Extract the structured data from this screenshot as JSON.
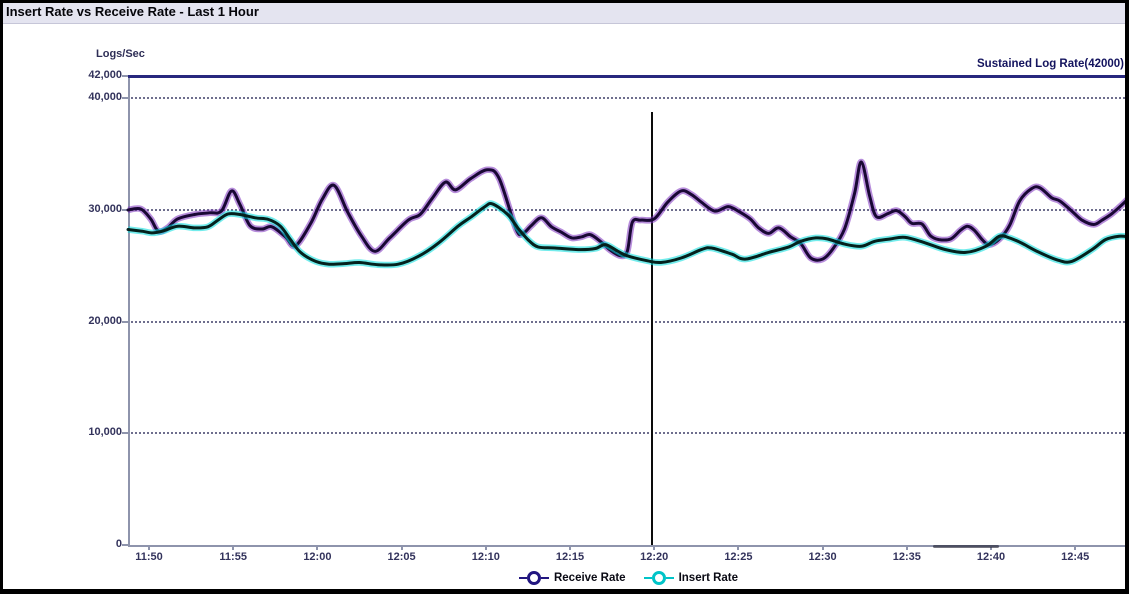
{
  "title": "Insert Rate vs Receive Rate - Last 1 Hour",
  "colors": {
    "titlebar_bg": "#e4e4f0",
    "threshold_line": "#28287e",
    "grid_dots": "#55557a",
    "axis": "#8e94ac",
    "tick_text": "#33335c",
    "cursor_line": "#0c0c0c",
    "receive_core": "#190834",
    "receive_glow": "#7b2fbe",
    "insert_core": "#04211d",
    "insert_glow": "#00dcdc"
  },
  "chart_data": {
    "type": "line",
    "title": "Insert Rate vs Receive Rate - Last 1 Hour",
    "xlabel": "",
    "ylabel": "Logs/Sec",
    "ylim": [
      0,
      42000
    ],
    "grid": "horizontal-dotted",
    "legend_position": "bottom-center",
    "y_ticks": [
      {
        "label": "42,000",
        "value": 42000,
        "grid": false
      },
      {
        "label": "40,000",
        "value": 40000,
        "grid": true
      },
      {
        "label": "30,000",
        "value": 30000,
        "grid": true
      },
      {
        "label": "20,000",
        "value": 20000,
        "grid": true
      },
      {
        "label": "10,000",
        "value": 10000,
        "grid": true
      },
      {
        "label": "0",
        "value": 0,
        "grid": false
      }
    ],
    "x_ticks": [
      {
        "label": "11:50",
        "t": 0
      },
      {
        "label": "11:55",
        "t": 5
      },
      {
        "label": "12:00",
        "t": 10
      },
      {
        "label": "12:05",
        "t": 15
      },
      {
        "label": "12:10",
        "t": 20
      },
      {
        "label": "12:15",
        "t": 25
      },
      {
        "label": "12:20",
        "t": 30
      },
      {
        "label": "12:25",
        "t": 35
      },
      {
        "label": "12:30",
        "t": 40
      },
      {
        "label": "12:35",
        "t": 45
      },
      {
        "label": "12:40",
        "t": 50
      },
      {
        "label": "12:45",
        "t": 55
      }
    ],
    "threshold": {
      "label": "Sustained Log Rate(42000)",
      "value": 42000
    },
    "vertical_cursor": {
      "time": "12:20",
      "t": 29.8,
      "top_value": 38800
    },
    "series": [
      {
        "name": "Receive Rate",
        "legend_color": "#221680",
        "core_color": "#190834",
        "glow_color": "#7b2fbe",
        "points": [
          [
            -1.25,
            30000
          ],
          [
            -0.5,
            30100
          ],
          [
            0.1,
            29200
          ],
          [
            0.55,
            28100
          ],
          [
            1.1,
            28400
          ],
          [
            1.7,
            29200
          ],
          [
            2.7,
            29600
          ],
          [
            3.6,
            29750
          ],
          [
            4.3,
            29900
          ],
          [
            4.9,
            31700
          ],
          [
            5.4,
            30500
          ],
          [
            6.0,
            28600
          ],
          [
            6.7,
            28300
          ],
          [
            7.3,
            28500
          ],
          [
            8.1,
            27600
          ],
          [
            8.7,
            26800
          ],
          [
            9.6,
            28800
          ],
          [
            10.3,
            31000
          ],
          [
            11.0,
            32200
          ],
          [
            11.8,
            29800
          ],
          [
            12.6,
            27700
          ],
          [
            13.4,
            26300
          ],
          [
            14.3,
            27500
          ],
          [
            15.4,
            29100
          ],
          [
            16.1,
            29600
          ],
          [
            16.8,
            31000
          ],
          [
            17.6,
            32500
          ],
          [
            18.2,
            31800
          ],
          [
            19.1,
            32800
          ],
          [
            20.1,
            33600
          ],
          [
            20.8,
            32800
          ],
          [
            21.8,
            28300
          ],
          [
            22.2,
            27900
          ],
          [
            22.7,
            28600
          ],
          [
            23.3,
            29300
          ],
          [
            23.9,
            28500
          ],
          [
            24.5,
            28000
          ],
          [
            25.1,
            27500
          ],
          [
            25.7,
            27600
          ],
          [
            26.2,
            27800
          ],
          [
            26.8,
            27200
          ],
          [
            27.4,
            26400
          ],
          [
            28.0,
            25900
          ],
          [
            28.4,
            26300
          ],
          [
            28.7,
            28900
          ],
          [
            29.2,
            29100
          ],
          [
            30.0,
            29200
          ],
          [
            30.8,
            30700
          ],
          [
            31.6,
            31700
          ],
          [
            32.2,
            31400
          ],
          [
            32.8,
            30700
          ],
          [
            33.6,
            29900
          ],
          [
            34.4,
            30300
          ],
          [
            35.1,
            29800
          ],
          [
            35.7,
            29200
          ],
          [
            36.2,
            28400
          ],
          [
            36.8,
            27900
          ],
          [
            37.4,
            28400
          ],
          [
            38.1,
            27600
          ],
          [
            38.7,
            27000
          ],
          [
            39.3,
            25700
          ],
          [
            40.0,
            25600
          ],
          [
            40.6,
            26500
          ],
          [
            41.3,
            28300
          ],
          [
            41.9,
            31500
          ],
          [
            42.3,
            34300
          ],
          [
            42.8,
            31200
          ],
          [
            43.2,
            29400
          ],
          [
            43.9,
            29700
          ],
          [
            44.4,
            29950
          ],
          [
            44.9,
            29400
          ],
          [
            45.3,
            28800
          ],
          [
            45.9,
            28750
          ],
          [
            46.4,
            27700
          ],
          [
            46.9,
            27350
          ],
          [
            47.6,
            27400
          ],
          [
            48.2,
            28200
          ],
          [
            48.6,
            28550
          ],
          [
            49.0,
            28200
          ],
          [
            49.5,
            27300
          ],
          [
            49.9,
            26900
          ],
          [
            50.5,
            27400
          ],
          [
            51.1,
            28600
          ],
          [
            51.7,
            30800
          ],
          [
            52.4,
            31900
          ],
          [
            52.9,
            32000
          ],
          [
            53.6,
            31100
          ],
          [
            54.1,
            30800
          ],
          [
            54.8,
            29900
          ],
          [
            55.4,
            29100
          ],
          [
            56.1,
            28700
          ],
          [
            56.6,
            29100
          ],
          [
            57.2,
            29700
          ],
          [
            57.8,
            30500
          ],
          [
            58.2,
            31100
          ]
        ]
      },
      {
        "name": "Insert Rate",
        "legend_color": "#00c4c8",
        "core_color": "#04211d",
        "glow_color": "#00dcdc",
        "points": [
          [
            -1.25,
            28250
          ],
          [
            -0.4,
            28100
          ],
          [
            0.2,
            27950
          ],
          [
            0.8,
            28100
          ],
          [
            1.7,
            28550
          ],
          [
            2.7,
            28400
          ],
          [
            3.5,
            28500
          ],
          [
            4.1,
            29100
          ],
          [
            4.7,
            29650
          ],
          [
            5.4,
            29600
          ],
          [
            6.3,
            29300
          ],
          [
            7.1,
            29150
          ],
          [
            7.8,
            28550
          ],
          [
            8.4,
            27350
          ],
          [
            9.0,
            26200
          ],
          [
            9.9,
            25400
          ],
          [
            10.7,
            25150
          ],
          [
            11.6,
            25200
          ],
          [
            12.5,
            25300
          ],
          [
            13.6,
            25100
          ],
          [
            14.8,
            25150
          ],
          [
            16.0,
            25850
          ],
          [
            17.2,
            27050
          ],
          [
            18.35,
            28550
          ],
          [
            19.1,
            29350
          ],
          [
            19.95,
            30300
          ],
          [
            20.4,
            30550
          ],
          [
            21.3,
            29600
          ],
          [
            21.9,
            28400
          ],
          [
            22.5,
            27350
          ],
          [
            23.1,
            26700
          ],
          [
            24.1,
            26600
          ],
          [
            25.5,
            26450
          ],
          [
            26.5,
            26550
          ],
          [
            27.1,
            26900
          ],
          [
            27.85,
            26300
          ],
          [
            28.4,
            25900
          ],
          [
            29.6,
            25450
          ],
          [
            30.4,
            25300
          ],
          [
            31.6,
            25700
          ],
          [
            32.8,
            26450
          ],
          [
            33.4,
            26600
          ],
          [
            34.6,
            26050
          ],
          [
            35.4,
            25600
          ],
          [
            36.8,
            26200
          ],
          [
            38.0,
            26700
          ],
          [
            38.7,
            27200
          ],
          [
            39.6,
            27500
          ],
          [
            40.3,
            27400
          ],
          [
            41.3,
            26950
          ],
          [
            42.3,
            26750
          ],
          [
            43.1,
            27200
          ],
          [
            44.0,
            27400
          ],
          [
            44.9,
            27550
          ],
          [
            46.1,
            27050
          ],
          [
            47.3,
            26450
          ],
          [
            48.5,
            26200
          ],
          [
            49.7,
            26750
          ],
          [
            50.5,
            27650
          ],
          [
            51.1,
            27500
          ],
          [
            51.8,
            27050
          ],
          [
            52.8,
            26250
          ],
          [
            54.0,
            25500
          ],
          [
            54.8,
            25400
          ],
          [
            56.0,
            26450
          ],
          [
            56.8,
            27350
          ],
          [
            57.6,
            27650
          ],
          [
            58.2,
            27600
          ]
        ]
      }
    ]
  }
}
